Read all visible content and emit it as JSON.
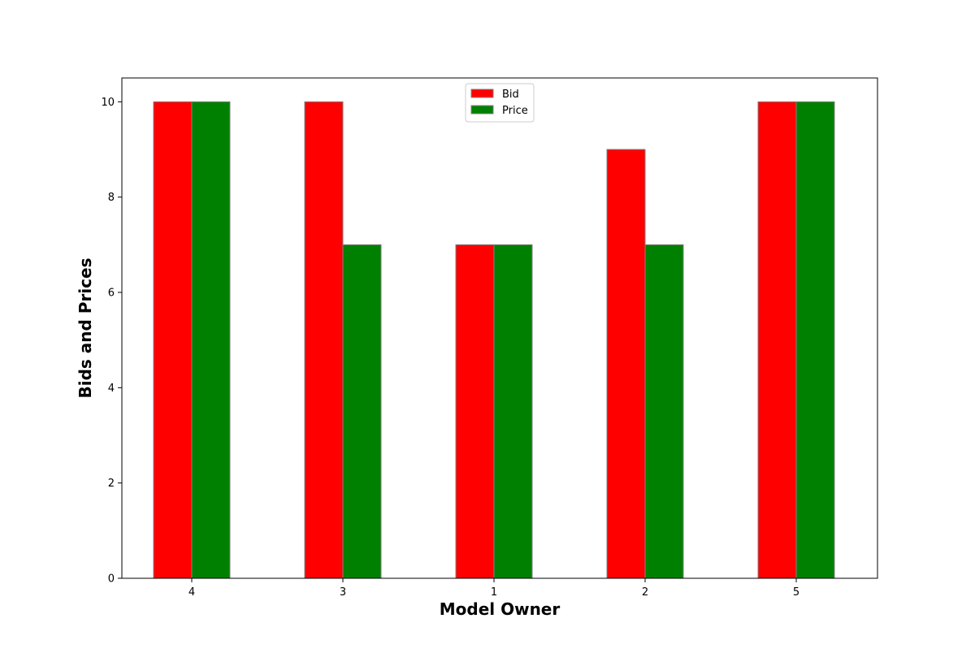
{
  "chart_data": {
    "type": "bar",
    "title": "",
    "xlabel": "Model Owner",
    "ylabel": "Bids and Prices",
    "categories": [
      "4",
      "3",
      "1",
      "2",
      "5"
    ],
    "series": [
      {
        "name": "Bid",
        "values": [
          10,
          10,
          7,
          9,
          10
        ],
        "color": "#ff0000"
      },
      {
        "name": "Price",
        "values": [
          10,
          7,
          7,
          7,
          10
        ],
        "color": "#008000"
      }
    ],
    "ylim": [
      0,
      10.5
    ],
    "yticks": [
      0,
      2,
      4,
      6,
      8,
      10
    ],
    "grid": false,
    "legend_position": "top-center",
    "bar_edge_color": "#808080"
  }
}
